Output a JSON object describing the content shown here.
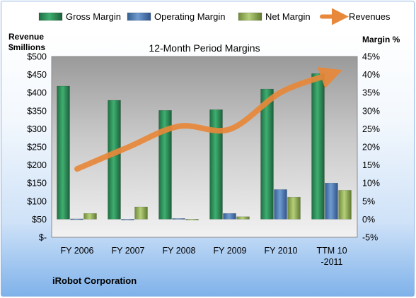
{
  "footer": "iRobot Corporation",
  "chart_data": {
    "type": "bar",
    "title": "12-Month Period Margins",
    "y_left_label": [
      "Revenue",
      "$millions"
    ],
    "y_right_label": "Margin %",
    "categories": [
      "FY 2006",
      "FY 2007",
      "FY 2008",
      "FY 2009",
      "FY 2010",
      "TTM 10-2011"
    ],
    "y_left_ticks": [
      "$-",
      "$50",
      "$100",
      "$150",
      "$200",
      "$250",
      "$300",
      "$350",
      "$400",
      "$450",
      "$500"
    ],
    "y_right_ticks": [
      "-5%",
      "0%",
      "5%",
      "10%",
      "15%",
      "20%",
      "25%",
      "30%",
      "35%",
      "40%",
      "45%"
    ],
    "y_left_range": [
      0,
      500
    ],
    "y_right_range": [
      -5,
      45
    ],
    "legend_position": "top",
    "grid": false,
    "series": [
      {
        "name": "Gross Margin",
        "axis": "right",
        "type": "bar",
        "color": "#2e8b57",
        "values": [
          36.8,
          32.9,
          30.1,
          30.3,
          36.0,
          40.3
        ]
      },
      {
        "name": "Operating Margin",
        "axis": "right",
        "type": "bar",
        "color": "#4f81bd",
        "values": [
          0.1,
          -0.1,
          0.2,
          1.6,
          8.2,
          10.0
        ]
      },
      {
        "name": "Net Margin",
        "axis": "right",
        "type": "bar",
        "color": "#9bbb59",
        "values": [
          1.6,
          3.4,
          0.0,
          0.7,
          6.1,
          8.0
        ]
      },
      {
        "name": "Revenues",
        "axis": "left",
        "type": "line",
        "color": "#e8883a",
        "values": [
          189,
          249,
          307,
          299,
          401,
          452
        ]
      }
    ]
  }
}
